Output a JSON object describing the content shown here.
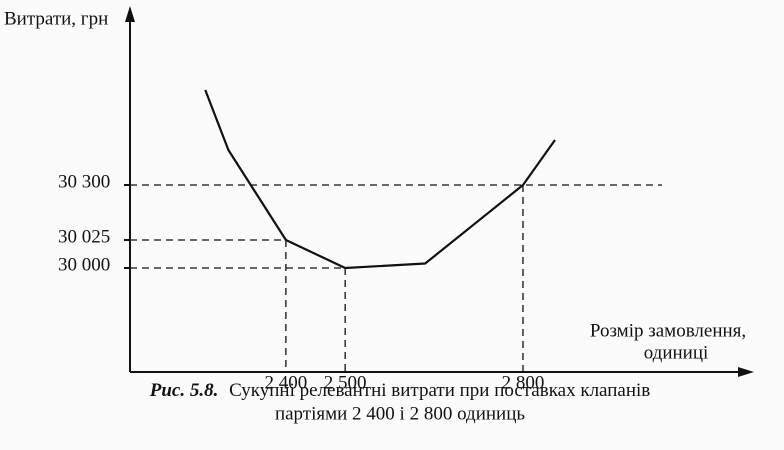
{
  "chart_data": {
    "type": "line",
    "y_label": "Витрати, грн",
    "x_label": [
      "Розмір замовлення,",
      "одиниці"
    ],
    "caption_label": "Рис. 5.8.",
    "caption": [
      "Сукупні релевантні витрати при поставках клапанів",
      "партіями 2 400 і 2 800 одиниць"
    ],
    "x": [
      2264,
      2303,
      2400,
      2500,
      2635,
      2800,
      2854
    ],
    "series": [
      {
        "color": "#111111",
        "values": [
          30775,
          30475,
          30025,
          30000,
          30004,
          30300,
          30525
        ]
      }
    ],
    "xlim": [
      2137,
      3183
    ],
    "xticks": [
      {
        "value": 2400,
        "label": "2 400"
      },
      {
        "value": 2500,
        "label": "2 500"
      },
      {
        "value": 2800,
        "label": "2 800"
      }
    ],
    "ylim": [
      29907,
      31125
    ],
    "yticks": [
      {
        "value": 30000,
        "label": "30 000"
      },
      {
        "value": 30025,
        "label": "30 025"
      },
      {
        "value": 30300,
        "label": "30 300"
      }
    ]
  }
}
